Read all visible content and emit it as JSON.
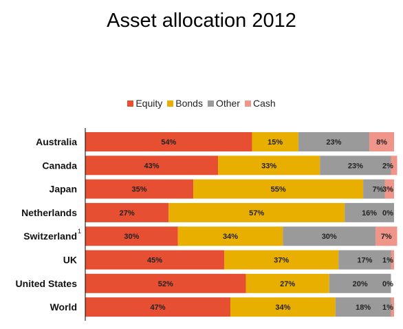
{
  "chart_data": {
    "type": "bar",
    "orientation": "horizontal",
    "stacked": true,
    "title": "Asset allocation 2012",
    "legend_position": "top",
    "grid": false,
    "xlim": [
      0,
      100
    ],
    "categories": [
      "Australia",
      "Canada",
      "Japan",
      "Netherlands",
      "Switzerland",
      "UK",
      "United States",
      "World"
    ],
    "category_notes": [
      "",
      "",
      "",
      "",
      "1",
      "",
      "",
      ""
    ],
    "series": [
      {
        "name": "Equity",
        "color": "#e64f32",
        "values": [
          54,
          43,
          35,
          27,
          30,
          45,
          52,
          47
        ],
        "labels": [
          "54%",
          "43%",
          "35%",
          "27%",
          "30%",
          "45%",
          "52%",
          "47%"
        ]
      },
      {
        "name": "Bonds",
        "color": "#e9af00",
        "values": [
          15,
          33,
          55,
          57,
          34,
          37,
          27,
          34
        ],
        "labels": [
          "15%",
          "33%",
          "55%",
          "57%",
          "34%",
          "37%",
          "27%",
          "34%"
        ]
      },
      {
        "name": "Other",
        "color": "#9a9a9a",
        "values": [
          23,
          23,
          7,
          16,
          30,
          17,
          20,
          18
        ],
        "labels": [
          "23%",
          "23%",
          "7%",
          "16%",
          "30%",
          "17%",
          "20%",
          "18%"
        ]
      },
      {
        "name": "Cash",
        "color": "#f0958a",
        "values": [
          8,
          2,
          3,
          0,
          7,
          1,
          0,
          1
        ],
        "labels": [
          "8%",
          "2%",
          "3%",
          "0%",
          "7%",
          "1%",
          "0%",
          "1%"
        ]
      }
    ]
  }
}
